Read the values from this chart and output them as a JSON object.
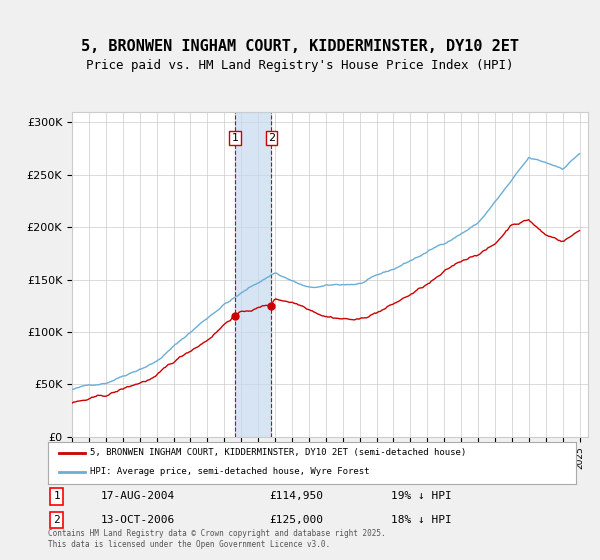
{
  "title": "5, BRONWEN INGHAM COURT, KIDDERMINSTER, DY10 2ET",
  "subtitle": "Price paid vs. HM Land Registry's House Price Index (HPI)",
  "title_fontsize": 11,
  "subtitle_fontsize": 9,
  "bg_color": "#f0f0f0",
  "plot_bg_color": "#ffffff",
  "hpi_color": "#6aaed6",
  "price_color": "#cc0000",
  "shade_color": "#c6d9f0",
  "sale1_date_idx": 9.6,
  "sale2_date_idx": 11.8,
  "sale1_label": "1",
  "sale2_label": "2",
  "sale1_year": "17-AUG-2004",
  "sale1_price": "£114,950",
  "sale1_note": "19% ↓ HPI",
  "sale2_year": "13-OCT-2006",
  "sale2_price": "£125,000",
  "sale2_note": "18% ↓ HPI",
  "legend_line1": "5, BRONWEN INGHAM COURT, KIDDERMINSTER, DY10 2ET (semi-detached house)",
  "legend_line2": "HPI: Average price, semi-detached house, Wyre Forest",
  "footer": "Contains HM Land Registry data © Crown copyright and database right 2025.\nThis data is licensed under the Open Government Licence v3.0.",
  "ylim": [
    0,
    310000
  ],
  "yticks": [
    0,
    50000,
    100000,
    150000,
    200000,
    250000,
    300000
  ],
  "ytick_labels": [
    "£0",
    "£50K",
    "£100K",
    "£150K",
    "£200K",
    "£250K",
    "£300K"
  ]
}
